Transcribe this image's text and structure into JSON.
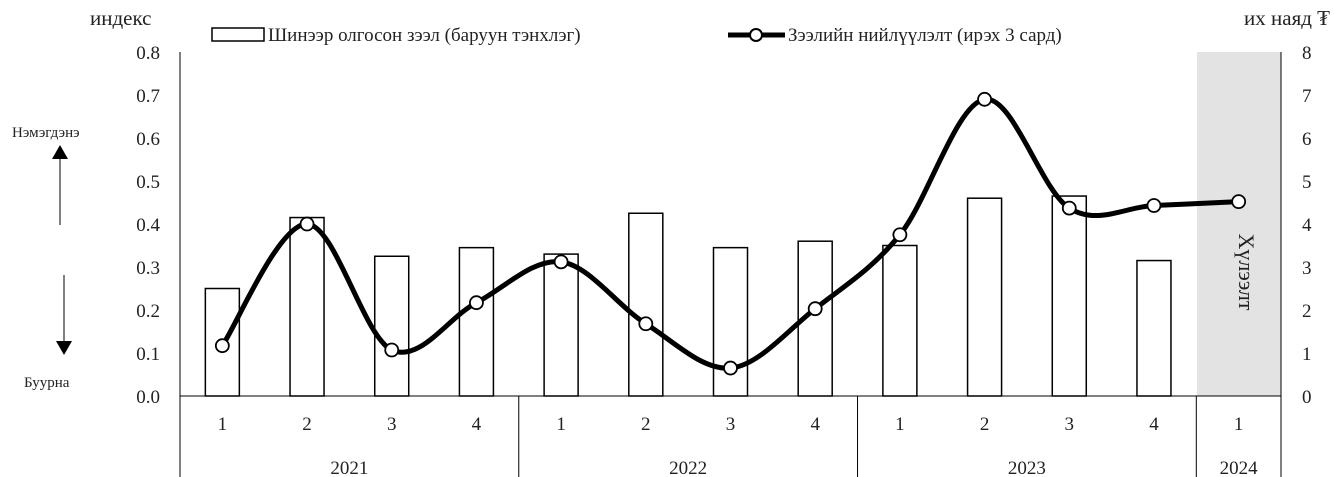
{
  "chart_data": {
    "type": "bar+line",
    "left_axis_title": "индекс",
    "right_axis_title": "их наяд ₮",
    "left_ylim": [
      0,
      0.8
    ],
    "right_ylim": [
      0,
      8
    ],
    "left_ticks": [
      "0.0",
      "0.1",
      "0.2",
      "0.3",
      "0.4",
      "0.5",
      "0.6",
      "0.7",
      "0.8"
    ],
    "right_ticks": [
      "0",
      "1",
      "2",
      "3",
      "4",
      "5",
      "6",
      "7",
      "8"
    ],
    "quarters": [
      "1",
      "2",
      "3",
      "4",
      "1",
      "2",
      "3",
      "4",
      "1",
      "2",
      "3",
      "4",
      "1"
    ],
    "years": [
      "2021",
      "2022",
      "2023",
      "2024"
    ],
    "series": [
      {
        "name": "Шинээр олгосон зээл (баруун тэнхлэг)",
        "type": "bar",
        "axis": "right",
        "values": [
          2.5,
          4.15,
          3.25,
          3.45,
          3.3,
          4.25,
          3.45,
          3.6,
          3.5,
          4.6,
          4.65,
          3.15,
          null
        ]
      },
      {
        "name": "Зээлийн нийлүүлэлт (ирэх 3 сард)",
        "type": "line",
        "axis": "left",
        "values": [
          0.117,
          0.4,
          0.107,
          0.217,
          0.312,
          0.168,
          0.065,
          0.203,
          0.375,
          0.69,
          0.437,
          0.443,
          0.452
        ]
      }
    ],
    "forecast_label": "Хүлээлт",
    "side_label_up": "Нэмэгдэнэ",
    "side_label_down": "Буурна",
    "grid": false,
    "legend": "top"
  }
}
